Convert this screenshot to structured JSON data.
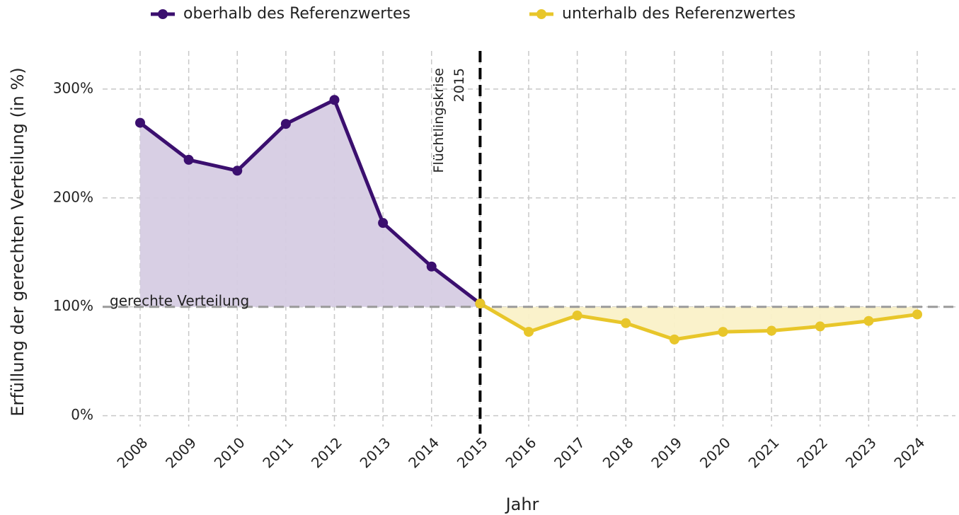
{
  "chart_data": {
    "type": "line",
    "categories": [
      "2008",
      "2009",
      "2010",
      "2011",
      "2012",
      "2013",
      "2014",
      "2015",
      "2016",
      "2017",
      "2018",
      "2019",
      "2020",
      "2021",
      "2022",
      "2023",
      "2024"
    ],
    "series": [
      {
        "name": "oberhalb des Referenzwertes",
        "color": "#3b0f6f",
        "fill": "#d6cce3",
        "values": [
          269,
          235,
          225,
          268,
          290,
          177,
          137,
          103,
          null,
          null,
          null,
          null,
          null,
          null,
          null,
          null,
          null
        ]
      },
      {
        "name": "unterhalb des Referenzwertes",
        "color": "#e8c62a",
        "fill": "#faf1c8",
        "values": [
          null,
          null,
          null,
          null,
          null,
          null,
          null,
          103,
          77,
          92,
          85,
          70,
          77,
          78,
          82,
          87,
          93
        ]
      }
    ],
    "xlabel": "Jahr",
    "ylabel": "Erfüllung der gerechten Verteilung (in %)",
    "ylim": [
      -10,
      335
    ],
    "yticks": [
      {
        "value": 0,
        "label": "0%"
      },
      {
        "value": 100,
        "label": "100%"
      },
      {
        "value": 200,
        "label": "200%"
      },
      {
        "value": 300,
        "label": "300%"
      }
    ],
    "grid": true,
    "legend": "top",
    "reference_line": {
      "value": 100,
      "label": "gerechte Verteilung"
    },
    "vline": {
      "x": "2015",
      "label": [
        "Flüchtlingskrise",
        "2015"
      ]
    }
  }
}
